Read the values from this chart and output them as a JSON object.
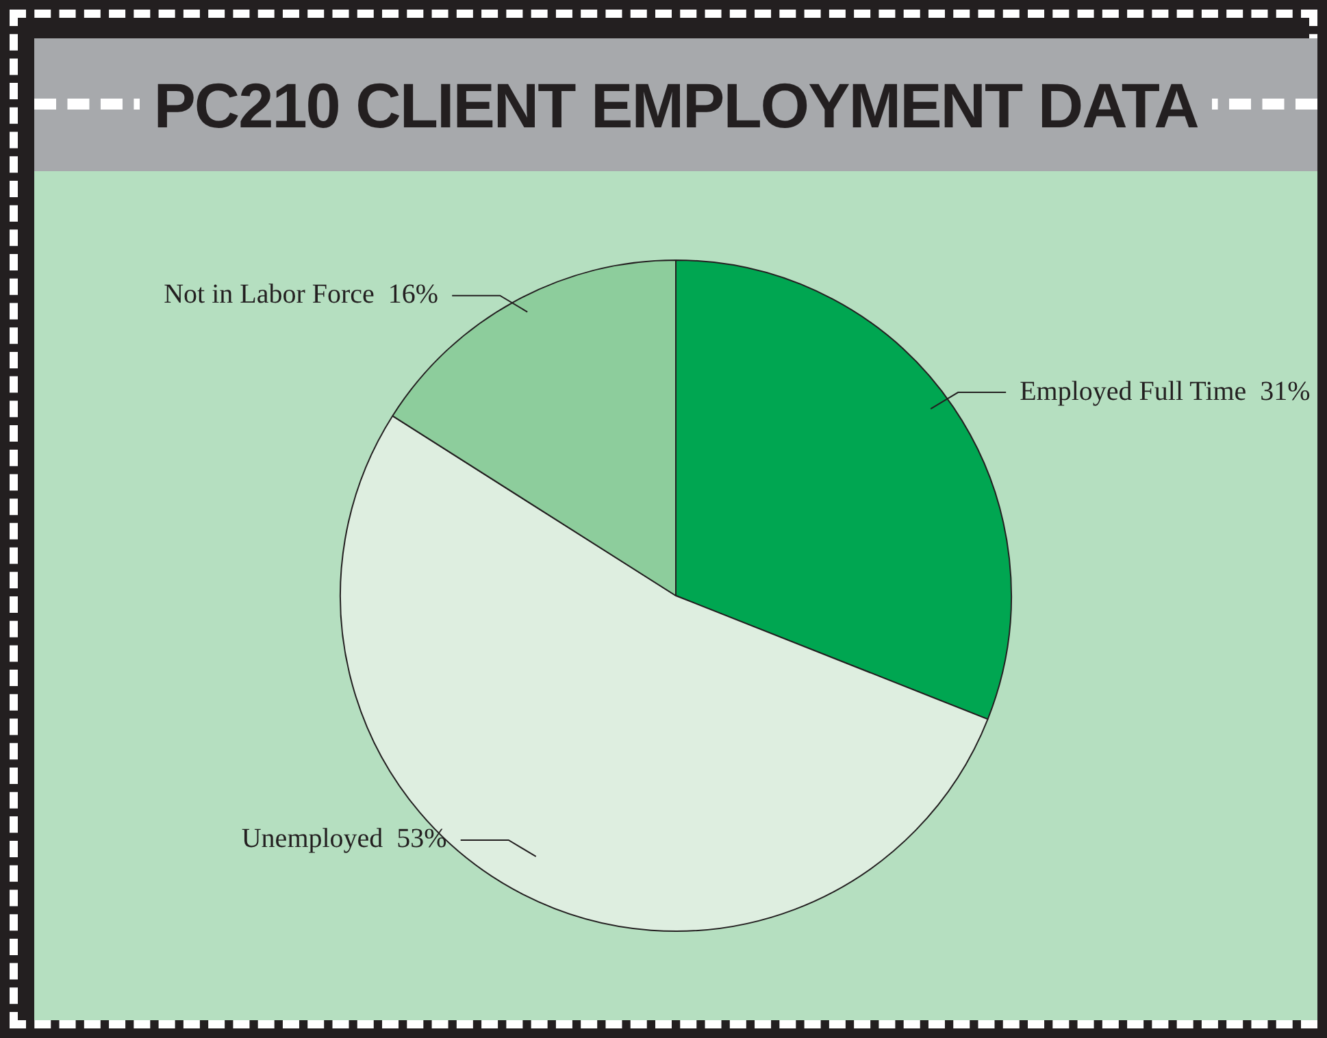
{
  "chart_data": {
    "type": "pie",
    "title": "PC210 CLIENT EMPLOYMENT DATA",
    "categories": [
      "Employed Full Time",
      "Unemployed",
      "Not in Labor Force"
    ],
    "values": [
      31,
      53,
      16
    ],
    "value_labels": [
      "31%",
      "53%",
      "16%"
    ],
    "colors": [
      "#00a651",
      "#deeee0",
      "#8dcd9c"
    ]
  }
}
